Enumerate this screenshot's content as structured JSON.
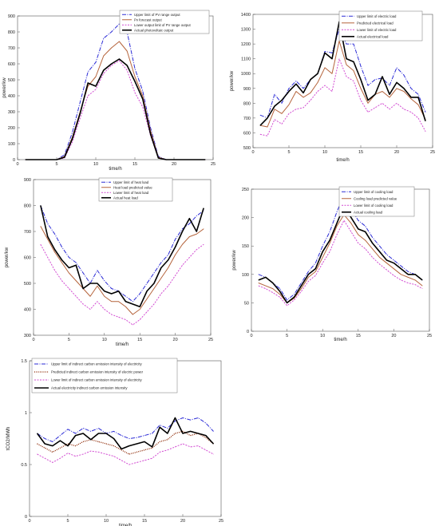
{
  "chart_data": [
    {
      "id": "pv",
      "type": "line",
      "xlabel": "time/h",
      "ylabel": "power/kw",
      "xlim": [
        0,
        25
      ],
      "ylim": [
        0,
        900
      ],
      "xticks": [
        0,
        5,
        10,
        15,
        20,
        25
      ],
      "yticks": [
        0,
        100,
        200,
        300,
        400,
        500,
        600,
        700,
        800,
        900
      ],
      "legend": "top-right",
      "x": [
        1,
        2,
        3,
        4,
        5,
        6,
        7,
        8,
        9,
        10,
        11,
        12,
        13,
        14,
        15,
        16,
        17,
        18,
        19,
        20,
        21,
        22,
        23,
        24
      ],
      "series": [
        {
          "name": "Upper limit of PV range output",
          "color": "#2b2bd6",
          "dash": "5,1.5,1,1.5",
          "width": 1,
          "values": [
            0,
            0,
            0,
            0,
            0,
            30,
            170,
            360,
            550,
            610,
            760,
            800,
            850,
            800,
            570,
            430,
            200,
            20,
            0,
            0,
            0,
            0,
            0,
            0
          ]
        },
        {
          "name": "Pv forecast output",
          "color": "#b5643c",
          "dash": "",
          "width": 1,
          "values": [
            0,
            0,
            0,
            0,
            0,
            20,
            140,
            300,
            460,
            520,
            650,
            700,
            740,
            680,
            520,
            400,
            180,
            15,
            0,
            0,
            0,
            0,
            0,
            0
          ]
        },
        {
          "name": "Lower output limit of PV range output",
          "color": "#d24bd2",
          "dash": "2,1.5",
          "width": 1,
          "values": [
            0,
            0,
            0,
            0,
            0,
            10,
            110,
            260,
            400,
            440,
            540,
            590,
            620,
            560,
            420,
            330,
            150,
            10,
            0,
            0,
            0,
            0,
            0,
            0
          ]
        },
        {
          "name": "Actual photovoltaic output",
          "color": "#000000",
          "dash": "",
          "width": 1.6,
          "values": [
            0,
            0,
            0,
            0,
            0,
            15,
            130,
            290,
            480,
            460,
            560,
            600,
            630,
            590,
            490,
            380,
            160,
            10,
            0,
            0,
            0,
            0,
            0,
            0
          ]
        }
      ]
    },
    {
      "id": "electric",
      "type": "line",
      "xlabel": "time/h",
      "ylabel": "power/kw",
      "xlim": [
        0,
        25
      ],
      "ylim": [
        500,
        1400
      ],
      "xticks": [
        0,
        5,
        10,
        15,
        20,
        25
      ],
      "yticks": [
        500,
        600,
        700,
        800,
        900,
        1000,
        1100,
        1200,
        1300,
        1400
      ],
      "legend": "top-right",
      "x": [
        1,
        2,
        3,
        4,
        5,
        6,
        7,
        8,
        9,
        10,
        11,
        12,
        13,
        14,
        15,
        16,
        17,
        18,
        19,
        20,
        21,
        22,
        23,
        24
      ],
      "series": [
        {
          "name": "Upper limit of electric load",
          "color": "#2b2bd6",
          "dash": "5,1.5,1,1.5",
          "width": 1,
          "values": [
            720,
            700,
            860,
            800,
            900,
            950,
            900,
            960,
            1000,
            1150,
            1140,
            1300,
            1200,
            1200,
            1050,
            920,
            960,
            970,
            920,
            1040,
            990,
            900,
            860,
            740
          ]
        },
        {
          "name": "Predicted electrical load",
          "color": "#b5643c",
          "dash": "",
          "width": 1,
          "values": [
            650,
            640,
            760,
            730,
            790,
            880,
            840,
            870,
            940,
            1040,
            1000,
            1220,
            1060,
            1020,
            900,
            800,
            860,
            880,
            840,
            900,
            880,
            830,
            790,
            690
          ]
        },
        {
          "name": "Lower limit of electric load",
          "color": "#d24bd2",
          "dash": "2,1.5",
          "width": 1,
          "values": [
            590,
            580,
            690,
            660,
            730,
            760,
            770,
            820,
            880,
            920,
            880,
            1100,
            980,
            950,
            820,
            740,
            770,
            800,
            760,
            800,
            760,
            740,
            700,
            610
          ]
        },
        {
          "name": "Actual electrical load",
          "color": "#000000",
          "dash": "",
          "width": 1.6,
          "values": [
            650,
            700,
            780,
            820,
            880,
            930,
            870,
            960,
            1000,
            1140,
            1100,
            1350,
            1100,
            1080,
            960,
            820,
            860,
            980,
            860,
            940,
            900,
            840,
            840,
            680
          ]
        }
      ]
    },
    {
      "id": "heat",
      "type": "line",
      "xlabel": "time/h",
      "ylabel": "power/kw",
      "xlim": [
        0,
        25
      ],
      "ylim": [
        300,
        900
      ],
      "xticks": [
        0,
        5,
        10,
        15,
        20,
        25
      ],
      "yticks": [
        300,
        400,
        500,
        600,
        700,
        800,
        900
      ],
      "legend": "top-right",
      "x": [
        1,
        2,
        3,
        4,
        5,
        6,
        7,
        8,
        9,
        10,
        11,
        12,
        13,
        14,
        15,
        16,
        17,
        18,
        19,
        20,
        21,
        22,
        23,
        24
      ],
      "series": [
        {
          "name": "Upper limit of heat load",
          "color": "#2b2bd6",
          "dash": "5,1.5,1,1.5",
          "width": 1,
          "values": [
            800,
            730,
            690,
            640,
            600,
            580,
            540,
            500,
            550,
            510,
            480,
            470,
            450,
            430,
            460,
            500,
            540,
            580,
            610,
            670,
            710,
            730,
            760,
            780
          ]
        },
        {
          "name": "Heat load predicted value",
          "color": "#b5643c",
          "dash": "",
          "width": 1,
          "values": [
            720,
            670,
            620,
            580,
            540,
            510,
            480,
            450,
            490,
            450,
            430,
            430,
            410,
            380,
            400,
            440,
            480,
            520,
            560,
            610,
            650,
            680,
            690,
            710
          ]
        },
        {
          "name": "Lower limit of heat load",
          "color": "#d24bd2",
          "dash": "2,1.5",
          "width": 1,
          "values": [
            650,
            600,
            550,
            510,
            480,
            450,
            420,
            400,
            430,
            400,
            380,
            370,
            360,
            340,
            360,
            390,
            420,
            460,
            490,
            530,
            570,
            600,
            630,
            650
          ]
        },
        {
          "name": "Actual heat load",
          "color": "#000000",
          "dash": "",
          "width": 1.6,
          "values": [
            800,
            680,
            630,
            590,
            560,
            570,
            480,
            500,
            500,
            470,
            460,
            470,
            430,
            420,
            410,
            470,
            500,
            560,
            590,
            640,
            700,
            750,
            700,
            790
          ]
        }
      ]
    },
    {
      "id": "cooling",
      "type": "line",
      "xlabel": "time/h",
      "ylabel": "power/kw",
      "xlim": [
        0,
        25
      ],
      "ylim": [
        0,
        250
      ],
      "xticks": [
        0,
        5,
        10,
        15,
        20,
        25
      ],
      "yticks": [
        0,
        50,
        100,
        150,
        200,
        250
      ],
      "legend": "top-right",
      "x": [
        1,
        2,
        3,
        4,
        5,
        6,
        7,
        8,
        9,
        10,
        11,
        12,
        13,
        14,
        15,
        16,
        17,
        18,
        19,
        20,
        21,
        22,
        23,
        24
      ],
      "series": [
        {
          "name": "Upper limit of cooling load",
          "color": "#2b2bd6",
          "dash": "5,1.5,1,1.5",
          "width": 1,
          "values": [
            100,
            95,
            85,
            75,
            55,
            65,
            85,
            105,
            120,
            150,
            175,
            210,
            240,
            215,
            195,
            185,
            165,
            150,
            135,
            125,
            115,
            105,
            100,
            90
          ]
        },
        {
          "name": "Cooling load predicted value",
          "color": "#b5643c",
          "dash": "",
          "width": 1,
          "values": [
            85,
            80,
            75,
            65,
            50,
            58,
            75,
            95,
            105,
            130,
            155,
            185,
            205,
            190,
            170,
            160,
            145,
            130,
            120,
            110,
            100,
            95,
            90,
            80
          ]
        },
        {
          "name": "Lower limit of cooling load",
          "color": "#d24bd2",
          "dash": "2,1.5",
          "width": 1,
          "values": [
            80,
            75,
            68,
            60,
            45,
            55,
            70,
            88,
            98,
            120,
            140,
            170,
            195,
            175,
            155,
            145,
            130,
            118,
            108,
            98,
            90,
            85,
            82,
            75
          ]
        },
        {
          "name": "Actual cooling load",
          "color": "#000000",
          "dash": "",
          "width": 1.6,
          "values": [
            90,
            95,
            85,
            70,
            50,
            60,
            80,
            100,
            110,
            140,
            160,
            190,
            220,
            200,
            180,
            175,
            155,
            140,
            125,
            120,
            110,
            100,
            100,
            90
          ]
        }
      ]
    },
    {
      "id": "carbon",
      "type": "line",
      "xlabel": "time/h",
      "ylabel": "tCO2/MWh",
      "xlim": [
        0,
        25
      ],
      "ylim": [
        0,
        1.5
      ],
      "xticks": [
        0,
        5,
        10,
        15,
        20,
        25
      ],
      "yticks": [
        0,
        0.5,
        1,
        1.5
      ],
      "ytick_labels": [
        "0",
        "0.5",
        "1",
        "1.5"
      ],
      "legend": "top",
      "x": [
        1,
        2,
        3,
        4,
        5,
        6,
        7,
        8,
        9,
        10,
        11,
        12,
        13,
        14,
        15,
        16,
        17,
        18,
        19,
        20,
        21,
        22,
        23,
        24
      ],
      "series": [
        {
          "name": "Upper limit of indirect carbon emission intensity of electricity",
          "color": "#2b2bd6",
          "dash": "5,1.5,1,1.5",
          "width": 1,
          "values": [
            0.8,
            0.75,
            0.72,
            0.78,
            0.84,
            0.8,
            0.85,
            0.82,
            0.85,
            0.8,
            0.82,
            0.78,
            0.75,
            0.76,
            0.78,
            0.8,
            0.88,
            0.85,
            0.92,
            0.95,
            0.93,
            0.95,
            0.9,
            0.82
          ]
        },
        {
          "name": "Predicted indirect carbon emission intensity of electric power",
          "color": "#8b2500",
          "dash": "1,1.3",
          "width": 1.3,
          "values": [
            0.7,
            0.66,
            0.62,
            0.66,
            0.7,
            0.68,
            0.72,
            0.74,
            0.72,
            0.7,
            0.68,
            0.64,
            0.6,
            0.62,
            0.64,
            0.66,
            0.72,
            0.74,
            0.8,
            0.82,
            0.78,
            0.8,
            0.76,
            0.7
          ]
        },
        {
          "name": "Lower limit of indirect carbon emission intensity of electricity",
          "color": "#d24bd2",
          "dash": "2,1.5",
          "width": 1,
          "values": [
            0.6,
            0.56,
            0.52,
            0.56,
            0.61,
            0.58,
            0.6,
            0.63,
            0.62,
            0.6,
            0.58,
            0.54,
            0.5,
            0.52,
            0.54,
            0.56,
            0.62,
            0.64,
            0.67,
            0.7,
            0.67,
            0.68,
            0.64,
            0.6
          ]
        },
        {
          "name": "Actual electricity indirect carbon emission intensity",
          "color": "#000000",
          "dash": "",
          "width": 1.6,
          "values": [
            0.8,
            0.7,
            0.68,
            0.73,
            0.68,
            0.78,
            0.8,
            0.74,
            0.8,
            0.8,
            0.75,
            0.65,
            0.68,
            0.7,
            0.72,
            0.67,
            0.86,
            0.8,
            0.95,
            0.8,
            0.82,
            0.8,
            0.78,
            0.7
          ]
        }
      ]
    }
  ]
}
